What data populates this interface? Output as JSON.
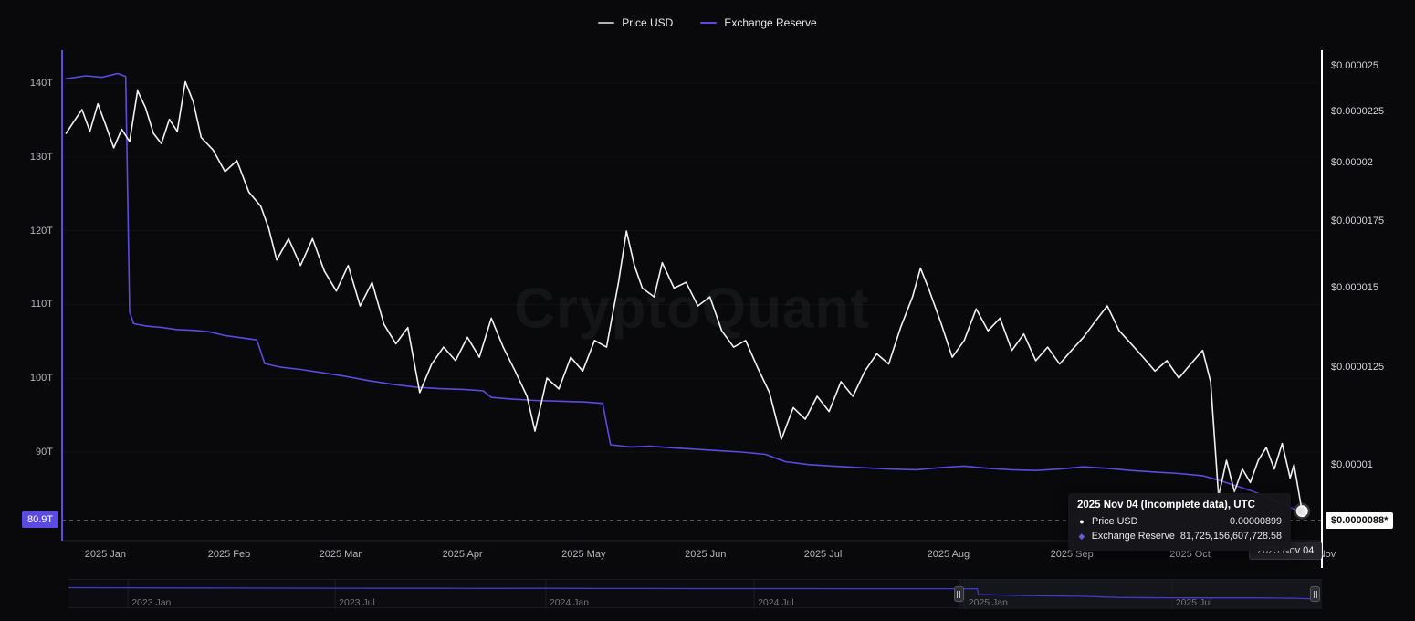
{
  "window": {
    "background": "#09090b"
  },
  "watermark": {
    "text": "CryptoQuant"
  },
  "legend": {
    "items": [
      {
        "label": "Price USD",
        "color": "#b0b0b8"
      },
      {
        "label": "Exchange Reserve",
        "color": "#5b4be0"
      }
    ]
  },
  "tooltip": {
    "title": "2025 Nov 04 (Incomplete data), UTC",
    "rows": [
      {
        "glyph": "●",
        "color": "#ffffff",
        "label": "Price USD",
        "value": "0.00000899"
      },
      {
        "glyph": "◆",
        "color": "#6a5ae8",
        "label": "Exchange Reserve",
        "value": "81,725,156,607,728.58"
      }
    ]
  },
  "badges": {
    "left_axis": {
      "text": "80.9T",
      "value": 80.9,
      "bg": "#5b4be0",
      "color": "#ffffff"
    },
    "right_axis": {
      "text": "$0.0000088*",
      "value": 8.8e-06,
      "bg": "#ffffff",
      "color": "#0b0b0e"
    },
    "x_axis": {
      "text": "2025 Nov 04",
      "date": "2025-11-04",
      "bg": "#232329",
      "color": "#ededf2"
    }
  },
  "chart_data": {
    "type": "line",
    "title": "",
    "x_domain": [
      "2024-12-27",
      "2025-11-09"
    ],
    "grid": false,
    "legend_position": "top-center",
    "last_price_level": 8.8e-06,
    "left_axis": {
      "label": "Exchange Reserve",
      "unit": "T",
      "scale": "linear",
      "domain": [
        78,
        144.46
      ],
      "ticks": [
        {
          "v": 140,
          "label": "140T"
        },
        {
          "v": 130,
          "label": "130T"
        },
        {
          "v": 120,
          "label": "120T"
        },
        {
          "v": 110,
          "label": "110T"
        },
        {
          "v": 100,
          "label": "100T"
        },
        {
          "v": 90,
          "label": "90T"
        }
      ]
    },
    "right_axis": {
      "label": "Price USD",
      "scale": "log",
      "domain": [
        8.4e-06,
        2.59e-05
      ],
      "ticks": [
        {
          "v": 2.5e-05,
          "label": "$0.000025"
        },
        {
          "v": 2.25e-05,
          "label": "$0.0000225"
        },
        {
          "v": 2e-05,
          "label": "$0.00002"
        },
        {
          "v": 1.75e-05,
          "label": "$0.0000175"
        },
        {
          "v": 1.5e-05,
          "label": "$0.000015"
        },
        {
          "v": 1.25e-05,
          "label": "$0.0000125"
        },
        {
          "v": 1e-05,
          "label": "$0.00001"
        }
      ]
    },
    "x_ticks": [
      {
        "date": "2025-01-01",
        "label": "2025 Jan"
      },
      {
        "date": "2025-02-01",
        "label": "2025 Feb"
      },
      {
        "date": "2025-03-01",
        "label": "2025 Mar"
      },
      {
        "date": "2025-04-01",
        "label": "2025 Apr"
      },
      {
        "date": "2025-05-01",
        "label": "2025 May"
      },
      {
        "date": "2025-06-01",
        "label": "2025 Jun"
      },
      {
        "date": "2025-07-01",
        "label": "2025 Jul"
      },
      {
        "date": "2025-08-01",
        "label": "2025 Aug"
      },
      {
        "date": "2025-09-01",
        "label": "2025 Sep"
      },
      {
        "date": "2025-10-01",
        "label": "2025 Oct"
      },
      {
        "date": "2025-11-01",
        "label": "2025 Nov"
      }
    ],
    "series": [
      {
        "name": "Exchange Reserve",
        "axis": "left",
        "unit": "trillion",
        "color": "#5b4be0",
        "points": [
          [
            "2024-12-28",
            140.6
          ],
          [
            "2025-01-02",
            141.0
          ],
          [
            "2025-01-06",
            140.8
          ],
          [
            "2025-01-10",
            141.3
          ],
          [
            "2025-01-12",
            140.9
          ],
          [
            "2025-01-13",
            109.0
          ],
          [
            "2025-01-14",
            107.4
          ],
          [
            "2025-01-17",
            107.1
          ],
          [
            "2025-01-21",
            106.9
          ],
          [
            "2025-01-25",
            106.6
          ],
          [
            "2025-01-29",
            106.5
          ],
          [
            "2025-02-02",
            106.3
          ],
          [
            "2025-02-06",
            105.8
          ],
          [
            "2025-02-10",
            105.5
          ],
          [
            "2025-02-14",
            105.2
          ],
          [
            "2025-02-16",
            102.0
          ],
          [
            "2025-02-20",
            101.5
          ],
          [
            "2025-02-25",
            101.2
          ],
          [
            "2025-03-02",
            100.8
          ],
          [
            "2025-03-08",
            100.3
          ],
          [
            "2025-03-14",
            99.7
          ],
          [
            "2025-03-20",
            99.2
          ],
          [
            "2025-03-26",
            98.8
          ],
          [
            "2025-04-01",
            98.6
          ],
          [
            "2025-04-07",
            98.5
          ],
          [
            "2025-04-12",
            98.3
          ],
          [
            "2025-04-14",
            97.4
          ],
          [
            "2025-04-19",
            97.2
          ],
          [
            "2025-04-25",
            97.0
          ],
          [
            "2025-05-01",
            96.9
          ],
          [
            "2025-05-07",
            96.8
          ],
          [
            "2025-05-12",
            96.6
          ],
          [
            "2025-05-14",
            91.0
          ],
          [
            "2025-05-19",
            90.7
          ],
          [
            "2025-05-24",
            90.8
          ],
          [
            "2025-05-29",
            90.6
          ],
          [
            "2025-06-04",
            90.4
          ],
          [
            "2025-06-10",
            90.2
          ],
          [
            "2025-06-16",
            90.0
          ],
          [
            "2025-06-22",
            89.7
          ],
          [
            "2025-06-27",
            88.7
          ],
          [
            "2025-07-03",
            88.3
          ],
          [
            "2025-07-09",
            88.1
          ],
          [
            "2025-07-16",
            87.9
          ],
          [
            "2025-07-23",
            87.7
          ],
          [
            "2025-07-30",
            87.6
          ],
          [
            "2025-08-05",
            87.9
          ],
          [
            "2025-08-11",
            88.1
          ],
          [
            "2025-08-17",
            87.8
          ],
          [
            "2025-08-23",
            87.6
          ],
          [
            "2025-08-29",
            87.5
          ],
          [
            "2025-09-04",
            87.7
          ],
          [
            "2025-09-10",
            88.0
          ],
          [
            "2025-09-16",
            87.8
          ],
          [
            "2025-09-22",
            87.5
          ],
          [
            "2025-09-28",
            87.3
          ],
          [
            "2025-10-04",
            87.1
          ],
          [
            "2025-10-10",
            86.8
          ],
          [
            "2025-10-14",
            86.2
          ],
          [
            "2025-10-18",
            85.5
          ],
          [
            "2025-10-22",
            84.8
          ],
          [
            "2025-10-26",
            84.0
          ],
          [
            "2025-10-30",
            83.0
          ],
          [
            "2025-11-02",
            82.3
          ],
          [
            "2025-11-04",
            81.73
          ]
        ]
      },
      {
        "name": "Price USD",
        "axis": "right",
        "unit": "USD",
        "color": "#f2f2f5",
        "points": [
          [
            "2024-12-28",
            2.14e-05
          ],
          [
            "2024-12-30",
            2.2e-05
          ],
          [
            "2025-01-01",
            2.26e-05
          ],
          [
            "2025-01-03",
            2.15e-05
          ],
          [
            "2025-01-05",
            2.29e-05
          ],
          [
            "2025-01-07",
            2.18e-05
          ],
          [
            "2025-01-09",
            2.07e-05
          ],
          [
            "2025-01-11",
            2.16e-05
          ],
          [
            "2025-01-13",
            2.1e-05
          ],
          [
            "2025-01-15",
            2.36e-05
          ],
          [
            "2025-01-17",
            2.27e-05
          ],
          [
            "2025-01-19",
            2.14e-05
          ],
          [
            "2025-01-21",
            2.09e-05
          ],
          [
            "2025-01-23",
            2.21e-05
          ],
          [
            "2025-01-25",
            2.15e-05
          ],
          [
            "2025-01-27",
            2.41e-05
          ],
          [
            "2025-01-29",
            2.3e-05
          ],
          [
            "2025-01-31",
            2.12e-05
          ],
          [
            "2025-02-03",
            2.06e-05
          ],
          [
            "2025-02-06",
            1.96e-05
          ],
          [
            "2025-02-09",
            2.01e-05
          ],
          [
            "2025-02-12",
            1.87e-05
          ],
          [
            "2025-02-15",
            1.81e-05
          ],
          [
            "2025-02-17",
            1.72e-05
          ],
          [
            "2025-02-19",
            1.6e-05
          ],
          [
            "2025-02-22",
            1.68e-05
          ],
          [
            "2025-02-25",
            1.58e-05
          ],
          [
            "2025-02-28",
            1.68e-05
          ],
          [
            "2025-03-03",
            1.56e-05
          ],
          [
            "2025-03-06",
            1.49e-05
          ],
          [
            "2025-03-09",
            1.58e-05
          ],
          [
            "2025-03-12",
            1.44e-05
          ],
          [
            "2025-03-15",
            1.52e-05
          ],
          [
            "2025-03-18",
            1.38e-05
          ],
          [
            "2025-03-21",
            1.32e-05
          ],
          [
            "2025-03-24",
            1.37e-05
          ],
          [
            "2025-03-27",
            1.18e-05
          ],
          [
            "2025-03-30",
            1.26e-05
          ],
          [
            "2025-04-02",
            1.31e-05
          ],
          [
            "2025-04-05",
            1.27e-05
          ],
          [
            "2025-04-08",
            1.34e-05
          ],
          [
            "2025-04-11",
            1.28e-05
          ],
          [
            "2025-04-14",
            1.4e-05
          ],
          [
            "2025-04-17",
            1.31e-05
          ],
          [
            "2025-04-20",
            1.24e-05
          ],
          [
            "2025-04-23",
            1.17e-05
          ],
          [
            "2025-04-25",
            1.08e-05
          ],
          [
            "2025-04-28",
            1.22e-05
          ],
          [
            "2025-05-01",
            1.19e-05
          ],
          [
            "2025-05-04",
            1.28e-05
          ],
          [
            "2025-05-07",
            1.24e-05
          ],
          [
            "2025-05-10",
            1.33e-05
          ],
          [
            "2025-05-13",
            1.31e-05
          ],
          [
            "2025-05-16",
            1.52e-05
          ],
          [
            "2025-05-18",
            1.71e-05
          ],
          [
            "2025-05-20",
            1.58e-05
          ],
          [
            "2025-05-22",
            1.5e-05
          ],
          [
            "2025-05-25",
            1.47e-05
          ],
          [
            "2025-05-27",
            1.59e-05
          ],
          [
            "2025-05-30",
            1.5e-05
          ],
          [
            "2025-06-02",
            1.52e-05
          ],
          [
            "2025-06-05",
            1.44e-05
          ],
          [
            "2025-06-08",
            1.47e-05
          ],
          [
            "2025-06-11",
            1.36e-05
          ],
          [
            "2025-06-14",
            1.31e-05
          ],
          [
            "2025-06-17",
            1.33e-05
          ],
          [
            "2025-06-20",
            1.25e-05
          ],
          [
            "2025-06-23",
            1.18e-05
          ],
          [
            "2025-06-26",
            1.06e-05
          ],
          [
            "2025-06-29",
            1.14e-05
          ],
          [
            "2025-07-02",
            1.11e-05
          ],
          [
            "2025-07-05",
            1.17e-05
          ],
          [
            "2025-07-08",
            1.13e-05
          ],
          [
            "2025-07-11",
            1.21e-05
          ],
          [
            "2025-07-14",
            1.17e-05
          ],
          [
            "2025-07-17",
            1.24e-05
          ],
          [
            "2025-07-20",
            1.29e-05
          ],
          [
            "2025-07-23",
            1.26e-05
          ],
          [
            "2025-07-26",
            1.37e-05
          ],
          [
            "2025-07-29",
            1.47e-05
          ],
          [
            "2025-07-31",
            1.57e-05
          ],
          [
            "2025-08-02",
            1.5e-05
          ],
          [
            "2025-08-05",
            1.39e-05
          ],
          [
            "2025-08-08",
            1.28e-05
          ],
          [
            "2025-08-11",
            1.33e-05
          ],
          [
            "2025-08-14",
            1.43e-05
          ],
          [
            "2025-08-17",
            1.36e-05
          ],
          [
            "2025-08-20",
            1.4e-05
          ],
          [
            "2025-08-23",
            1.3e-05
          ],
          [
            "2025-08-26",
            1.35e-05
          ],
          [
            "2025-08-29",
            1.27e-05
          ],
          [
            "2025-09-01",
            1.31e-05
          ],
          [
            "2025-09-04",
            1.26e-05
          ],
          [
            "2025-09-07",
            1.3e-05
          ],
          [
            "2025-09-10",
            1.34e-05
          ],
          [
            "2025-09-13",
            1.39e-05
          ],
          [
            "2025-09-16",
            1.44e-05
          ],
          [
            "2025-09-19",
            1.36e-05
          ],
          [
            "2025-09-22",
            1.32e-05
          ],
          [
            "2025-09-25",
            1.28e-05
          ],
          [
            "2025-09-28",
            1.24e-05
          ],
          [
            "2025-10-01",
            1.27e-05
          ],
          [
            "2025-10-04",
            1.22e-05
          ],
          [
            "2025-10-07",
            1.26e-05
          ],
          [
            "2025-10-10",
            1.3e-05
          ],
          [
            "2025-10-12",
            1.21e-05
          ],
          [
            "2025-10-14",
            9.3e-06
          ],
          [
            "2025-10-16",
            1.01e-05
          ],
          [
            "2025-10-18",
            9.4e-06
          ],
          [
            "2025-10-20",
            9.9e-06
          ],
          [
            "2025-10-22",
            9.6e-06
          ],
          [
            "2025-10-24",
            1.01e-05
          ],
          [
            "2025-10-26",
            1.04e-05
          ],
          [
            "2025-10-28",
            9.9e-06
          ],
          [
            "2025-10-30",
            1.05e-05
          ],
          [
            "2025-11-01",
            9.7e-06
          ],
          [
            "2025-11-02",
            1e-05
          ],
          [
            "2025-11-04",
            8.99e-06
          ]
        ]
      }
    ],
    "last_values": {
      "price_usd": 8.99e-06,
      "exchange_reserve": 81725156607728.58
    },
    "navigator": {
      "x_domain": [
        "2022-11-10",
        "2025-11-09"
      ],
      "selection": [
        "2024-12-27",
        "2025-11-09"
      ],
      "y_domain": [
        55,
        170
      ],
      "ticks": [
        {
          "date": "2023-01-01",
          "label": "2023 Jan"
        },
        {
          "date": "2023-07-01",
          "label": "2023 Jul"
        },
        {
          "date": "2024-01-01",
          "label": "2024 Jan"
        },
        {
          "date": "2024-07-01",
          "label": "2024 Jul"
        },
        {
          "date": "2025-01-01",
          "label": "2025 Jan"
        },
        {
          "date": "2025-07-01",
          "label": "2025 Jul"
        }
      ],
      "series": {
        "name": "Exchange Reserve",
        "color": "#4638c8",
        "points": [
          [
            "2022-11-10",
            146.5
          ],
          [
            "2022-12-15",
            146.0
          ],
          [
            "2023-01-15",
            145.5
          ],
          [
            "2023-02-20",
            145.0
          ],
          [
            "2023-04-01",
            144.4
          ],
          [
            "2023-05-15",
            143.9
          ],
          [
            "2023-07-01",
            143.4
          ],
          [
            "2023-08-15",
            143.0
          ],
          [
            "2023-10-01",
            142.7
          ],
          [
            "2023-11-15",
            142.4
          ],
          [
            "2024-01-01",
            142.6
          ],
          [
            "2024-02-15",
            142.0
          ],
          [
            "2024-04-01",
            141.6
          ],
          [
            "2024-05-15",
            141.3
          ],
          [
            "2024-07-01",
            141.0
          ],
          [
            "2024-08-15",
            141.2
          ],
          [
            "2024-10-01",
            140.9
          ],
          [
            "2024-11-15",
            140.8
          ],
          [
            "2025-01-12",
            140.9
          ],
          [
            "2025-01-13",
            107.4
          ],
          [
            "2025-02-16",
            101.8
          ],
          [
            "2025-03-15",
            99.6
          ],
          [
            "2025-04-14",
            97.4
          ],
          [
            "2025-05-14",
            90.8
          ],
          [
            "2025-06-27",
            88.5
          ],
          [
            "2025-08-01",
            87.7
          ],
          [
            "2025-09-15",
            87.7
          ],
          [
            "2025-10-15",
            86.0
          ],
          [
            "2025-11-04",
            81.7
          ]
        ]
      }
    }
  }
}
